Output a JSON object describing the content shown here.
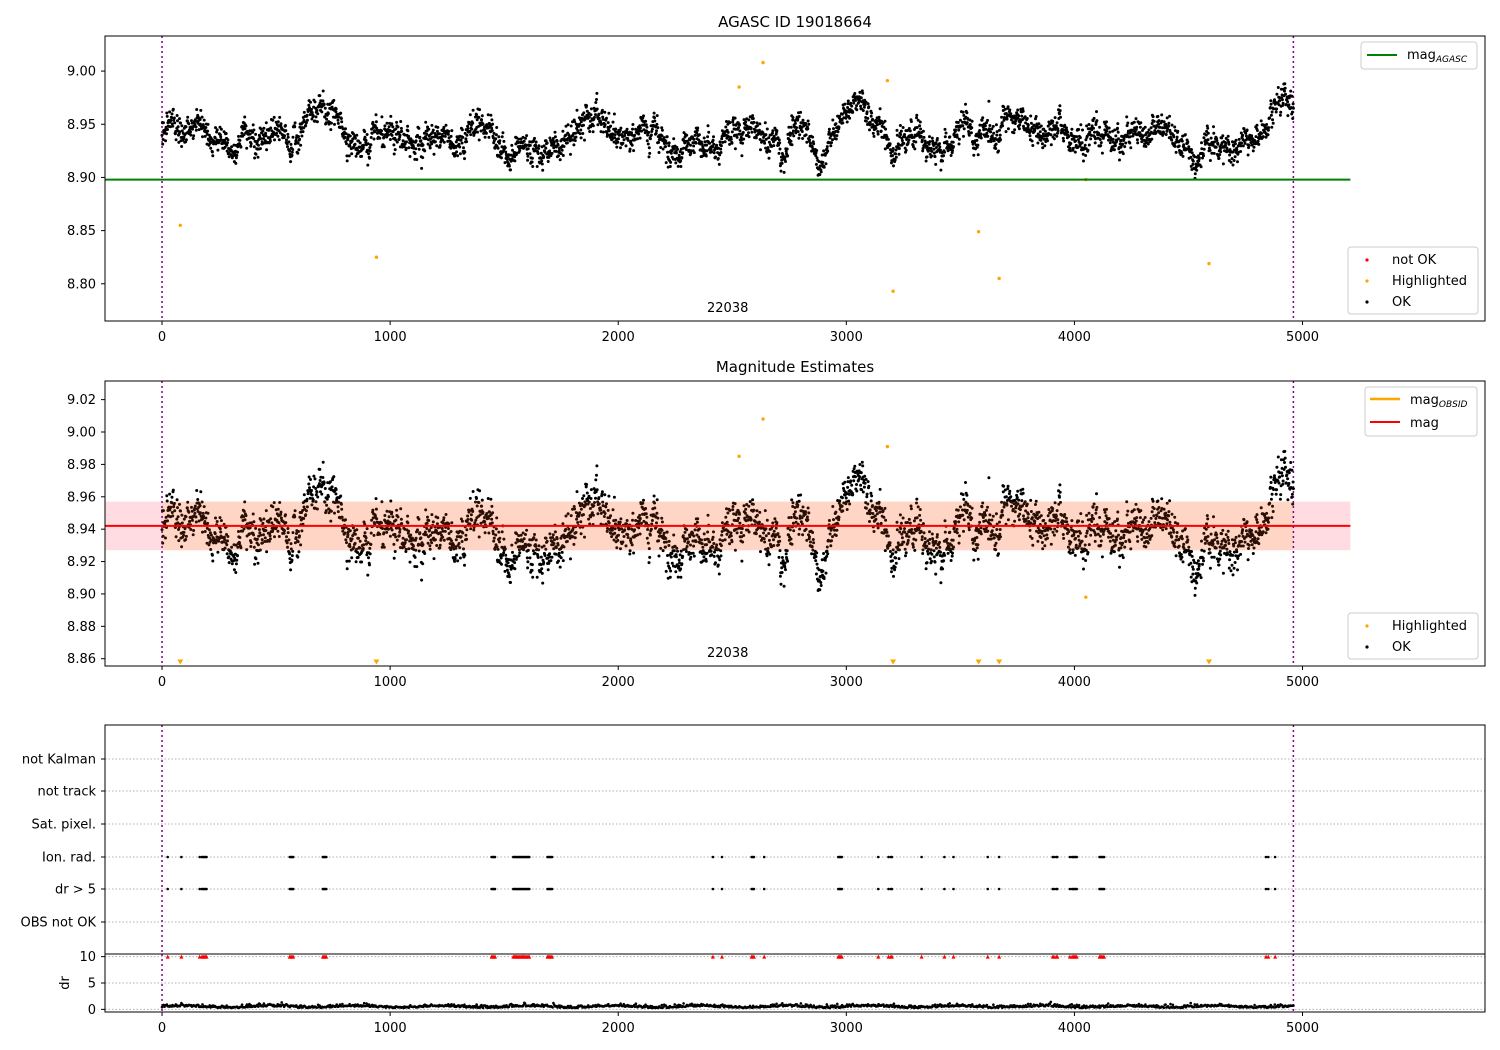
{
  "colors": {
    "ok": "#000000",
    "not_ok": "#ff0000",
    "highlighted": "#ffa500",
    "agasc_line": "#008000",
    "obsid_line": "#ffa500",
    "mean_line": "#ff0000",
    "band_fill": "#ffc0cb",
    "band_fill_2": "#ffd5bf",
    "obs_boundary": "#800080",
    "grid": "#b0b0b0"
  },
  "chart_data": [
    {
      "id": "top",
      "type": "scatter",
      "title": "AGASC ID 19018664",
      "xlim": [
        -250,
        5800
      ],
      "ylim": [
        8.765,
        9.033
      ],
      "xticks": [
        0,
        1000,
        2000,
        3000,
        4000,
        5000
      ],
      "yticks": [
        8.8,
        8.85,
        8.9,
        8.95,
        9.0
      ],
      "ytick_labels": [
        "8.80",
        "8.85",
        "8.90",
        "8.95",
        "9.00"
      ],
      "obs_boundaries": [
        0,
        4960
      ],
      "obsid_label": "22038",
      "obsid_label_x": 2480,
      "ok_series": {
        "x_range": [
          0,
          4960
        ],
        "baseline": 8.939,
        "spread": 0.022
      },
      "horizontal_lines": [
        {
          "name": "mag_AGASC",
          "y": 8.898,
          "x_range": [
            -250,
            5210
          ]
        }
      ],
      "highlighted_points": [
        {
          "x": 80,
          "y": 8.855
        },
        {
          "x": 940,
          "y": 8.825
        },
        {
          "x": 2530,
          "y": 8.985
        },
        {
          "x": 2635,
          "y": 9.008
        },
        {
          "x": 3180,
          "y": 8.991
        },
        {
          "x": 3205,
          "y": 8.793
        },
        {
          "x": 3580,
          "y": 8.849
        },
        {
          "x": 3670,
          "y": 8.805
        },
        {
          "x": 4050,
          "y": 8.898
        },
        {
          "x": 4590,
          "y": 8.819
        }
      ],
      "legend_lines": [
        {
          "label": "mag",
          "sub": "AGASC"
        }
      ],
      "legend_points": [
        "not OK",
        "Highlighted",
        "OK"
      ]
    },
    {
      "id": "middle",
      "type": "scatter",
      "title": "Magnitude Estimates",
      "xlim": [
        -250,
        5800
      ],
      "ylim": [
        8.8555,
        9.0315
      ],
      "xticks": [
        0,
        1000,
        2000,
        3000,
        4000,
        5000
      ],
      "yticks": [
        8.86,
        8.88,
        8.9,
        8.92,
        8.94,
        8.96,
        8.98,
        9.0,
        9.02
      ],
      "ytick_labels": [
        "8.86",
        "8.88",
        "8.90",
        "8.92",
        "8.94",
        "8.96",
        "8.98",
        "9.00",
        "9.02"
      ],
      "obs_boundaries": [
        0,
        4960
      ],
      "obsid_label": "22038",
      "obsid_label_x": 2480,
      "mean": 8.942,
      "band": [
        8.927,
        8.957
      ],
      "band_x_range": [
        -250,
        5210
      ],
      "highlighted_points": [
        {
          "x": 2530,
          "y": 8.985
        },
        {
          "x": 2635,
          "y": 9.008
        },
        {
          "x": 3180,
          "y": 8.991
        },
        {
          "x": 4050,
          "y": 8.898
        }
      ],
      "below_range_markers": [
        80,
        940,
        3205,
        3580,
        3670,
        4590
      ],
      "legend_lines": [
        {
          "label": "mag",
          "sub": "OBSID"
        },
        {
          "label": "mag",
          "sub": ""
        }
      ],
      "legend_points": [
        "Highlighted",
        "OK"
      ]
    },
    {
      "id": "flags",
      "type": "scatter",
      "xlim": [
        -250,
        5800
      ],
      "xticks": [
        0,
        1000,
        2000,
        3000,
        4000,
        5000
      ],
      "flag_rows": [
        "not Kalman",
        "not track",
        "Sat. pixel.",
        "Ion. rad.",
        "dr > 5",
        "OBS not OK"
      ],
      "flag_x": [
        25,
        85,
        165,
        175,
        180,
        185,
        190,
        195,
        560,
        565,
        570,
        575,
        705,
        710,
        715,
        720,
        1445,
        1450,
        1455,
        1460,
        1540,
        1545,
        1550,
        1555,
        1560,
        1565,
        1570,
        1575,
        1580,
        1585,
        1590,
        1595,
        1600,
        1605,
        1610,
        1690,
        1695,
        1700,
        1705,
        1710,
        2415,
        2455,
        2585,
        2590,
        2595,
        2640,
        2965,
        2970,
        2975,
        2980,
        3140,
        3185,
        3195,
        3200,
        3330,
        3430,
        3470,
        3620,
        3670,
        3905,
        3910,
        3920,
        3925,
        3980,
        3990,
        3995,
        4000,
        4005,
        4010,
        4110,
        4115,
        4120,
        4125,
        4130,
        4840,
        4850,
        4880
      ],
      "flag_rows_hit": [
        "Ion. rad.",
        "dr > 5"
      ]
    },
    {
      "id": "dr",
      "type": "scatter",
      "ylabel": "dr",
      "xlim": [
        -250,
        5800
      ],
      "ylim": [
        -0.5,
        10.5
      ],
      "xticks": [
        0,
        1000,
        2000,
        3000,
        4000,
        5000
      ],
      "x_tick_labels": [
        "0",
        "1000",
        "2000",
        "3000",
        "4000",
        "5000"
      ],
      "yticks": [
        0,
        5,
        10
      ],
      "ytick_labels": [
        "0",
        "5",
        "10"
      ],
      "clipped_value": 10,
      "dr_series": {
        "x_range": [
          0,
          4960
        ],
        "typical": 0.4
      }
    }
  ]
}
